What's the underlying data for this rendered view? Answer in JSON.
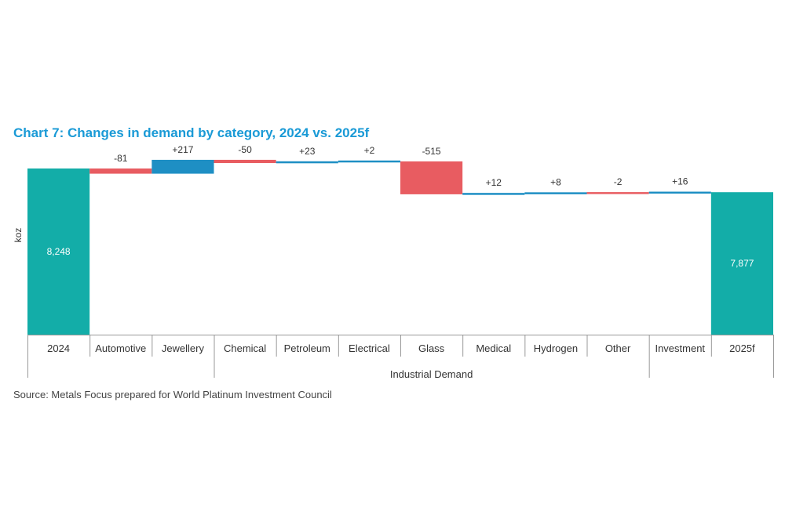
{
  "chart_data": {
    "type": "waterfall",
    "title": "Chart 7: Changes in demand by category, 2024 vs. 2025f",
    "ylabel": "koz",
    "categories": [
      "2024",
      "Automotive",
      "Jewellery",
      "Chemical",
      "Petroleum",
      "Electrical",
      "Glass",
      "Medical",
      "Hydrogen",
      "Other",
      "Investment",
      "2025f"
    ],
    "values": [
      8248,
      -81,
      217,
      -50,
      23,
      2,
      -515,
      12,
      8,
      -2,
      16,
      7877
    ],
    "value_labels": [
      "8,248",
      "-81",
      "+217",
      "-50",
      "+23",
      "+2",
      "-515",
      "+12",
      "+8",
      "-2",
      "+16",
      "7,877"
    ],
    "kinds": [
      "total",
      "change",
      "change",
      "change",
      "change",
      "change",
      "change",
      "change",
      "change",
      "change",
      "change",
      "total"
    ],
    "group_label": "Industrial Demand",
    "group_range": [
      3,
      9
    ],
    "ylim": [
      5645,
      8420
    ],
    "colors": {
      "total": "#13ada8",
      "increase": "#1e8fc4",
      "decrease": "#e85c61"
    }
  },
  "source": "Source: Metals Focus prepared for World Platinum Investment Council"
}
